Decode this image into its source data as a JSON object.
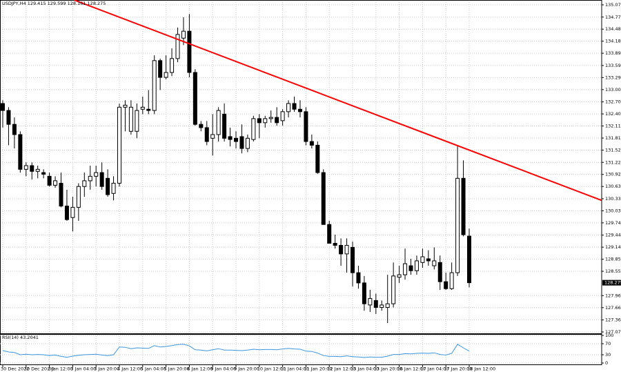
{
  "chart_data": {
    "type": "candlestick",
    "title": "USDJPY,H4  129.415 129.599 128.161 128.275",
    "categories": [
      "30 Dec 2022",
      null,
      null,
      null,
      "30 Dec 20:00",
      null,
      null,
      null,
      "2 Jan 12:00",
      null,
      null,
      null,
      "3 Jan 04:00",
      null,
      null,
      null,
      "3 Jan 20:00",
      null,
      null,
      null,
      "4 Jan 12:00",
      null,
      null,
      null,
      "5 Jan 04:00",
      null,
      null,
      null,
      "5 Jan 20:00",
      null,
      null,
      null,
      "6 Jan 12:00",
      null,
      null,
      null,
      "9 Jan 04:00",
      null,
      null,
      null,
      "9 Jan 20:00",
      null,
      null,
      null,
      "10 Jan 12:00",
      null,
      null,
      null,
      "11 Jan 04:00",
      null,
      null,
      null,
      "11 Jan 20:00",
      null,
      null,
      null,
      "12 Jan 12:00",
      null,
      null,
      null,
      "13 Jan 04:00",
      null,
      null,
      null,
      "13 Jan 20:00",
      null,
      null,
      null,
      "16 Jan 12:00",
      null,
      null,
      null,
      "17 Jan 04:00",
      null,
      null,
      null,
      "17 Jan 20:00",
      null,
      null,
      null,
      "18 Jan 12:00"
    ],
    "open": [
      132.66,
      132.49,
      132.15,
      131.9,
      131.05,
      131.14,
      131.0,
      130.97,
      130.88,
      130.66,
      130.71,
      130.15,
      129.87,
      130.12,
      130.63,
      130.77,
      130.88,
      130.97,
      130.83,
      130.46,
      130.71,
      132.57,
      131.98,
      131.98,
      132.52,
      132.52,
      132.49,
      133.71,
      133.3,
      133.42,
      133.76,
      134.26,
      134.43,
      133.42,
      132.15,
      132.07,
      131.81,
      131.9,
      132.4,
      131.85,
      131.81,
      131.85,
      131.56,
      131.78,
      132.29,
      132.19,
      132.29,
      132.32,
      132.24,
      132.46,
      132.66,
      132.52,
      132.46,
      131.73,
      131.64,
      130.97,
      129.7,
      129.24,
      129.19,
      128.98,
      129.14,
      128.52,
      128.27,
      127.73,
      127.84,
      127.67,
      127.67,
      127.76,
      128.41,
      128.47,
      128.69,
      128.57,
      128.77,
      128.86,
      128.69,
      128.77,
      128.3,
      128.13,
      128.52,
      130.83,
      129.415
    ],
    "high": [
      132.74,
      132.57,
      132.32,
      131.98,
      131.22,
      131.22,
      131.14,
      131.05,
      130.97,
      130.88,
      130.97,
      130.55,
      130.38,
      130.71,
      130.97,
      131.14,
      131.14,
      131.22,
      131.05,
      130.88,
      132.66,
      132.74,
      132.74,
      132.66,
      132.83,
      132.99,
      133.84,
      133.76,
      133.84,
      134.01,
      134.52,
      134.77,
      134.85,
      133.5,
      132.23,
      132.23,
      132.4,
      132.57,
      132.66,
      132.07,
      131.98,
      132.15,
      131.9,
      132.36,
      132.4,
      132.36,
      132.49,
      132.57,
      132.52,
      132.74,
      132.83,
      132.74,
      132.57,
      131.9,
      131.73,
      131.05,
      129.79,
      129.45,
      129.36,
      129.36,
      129.28,
      128.69,
      128.44,
      128.1,
      128.01,
      127.84,
      128.47,
      128.77,
      128.69,
      129.11,
      128.86,
      128.94,
      129.11,
      129.07,
      129.14,
      128.94,
      128.52,
      128.77,
      131.61,
      131.27,
      129.599
    ],
    "low": [
      132.07,
      131.64,
      131.56,
      130.97,
      130.88,
      130.8,
      130.83,
      130.83,
      130.63,
      130.6,
      130.12,
      129.79,
      129.53,
      129.79,
      130.38,
      130.55,
      130.63,
      130.55,
      130.38,
      130.29,
      130.63,
      131.98,
      131.9,
      131.81,
      132.4,
      132.4,
      132.4,
      132.99,
      133.25,
      133.33,
      133.67,
      134.09,
      133.3,
      132.12,
      131.98,
      131.64,
      131.39,
      131.73,
      131.73,
      131.61,
      131.56,
      131.44,
      131.47,
      131.73,
      131.81,
      132.07,
      132.19,
      132.12,
      132.12,
      132.32,
      132.46,
      132.32,
      131.64,
      131.56,
      130.94,
      129.7,
      129.24,
      129.11,
      128.69,
      128.52,
      128.18,
      128.13,
      127.59,
      127.56,
      127.51,
      127.59,
      127.29,
      127.67,
      128.27,
      128.35,
      128.47,
      128.47,
      128.64,
      128.69,
      128.6,
      128.1,
      128.1,
      128.1,
      128.44,
      129.41,
      128.161
    ],
    "close": [
      132.49,
      132.15,
      131.9,
      131.05,
      131.14,
      131.0,
      131.05,
      130.93,
      130.66,
      130.77,
      130.15,
      129.82,
      130.12,
      130.63,
      130.77,
      130.88,
      130.97,
      130.63,
      130.43,
      130.71,
      132.57,
      132.62,
      132.57,
      132.49,
      132.57,
      132.49,
      133.71,
      133.3,
      133.42,
      133.76,
      134.35,
      134.43,
      133.42,
      132.15,
      132.07,
      131.73,
      131.9,
      132.49,
      131.81,
      131.78,
      131.73,
      131.56,
      131.81,
      132.29,
      132.19,
      132.29,
      132.32,
      132.19,
      132.46,
      132.66,
      132.52,
      132.46,
      131.73,
      131.64,
      130.97,
      129.7,
      129.24,
      129.19,
      128.98,
      129.19,
      128.52,
      128.27,
      127.76,
      127.89,
      127.67,
      127.73,
      127.76,
      128.44,
      128.47,
      128.74,
      128.57,
      128.81,
      128.91,
      128.81,
      128.81,
      128.3,
      128.13,
      128.52,
      130.83,
      129.45,
      128.275
    ],
    "up_color": "#ffffff",
    "down_color": "#000000",
    "ylim": [
      127.036,
      135.193
    ],
    "yticks": [
      135.075,
      134.775,
      {
        "value": 134.48,
        "label": "134.480"
      },
      134.185,
      {
        "value": 133.89,
        "label": "133.890"
      },
      {
        "value": 133.59,
        "label": "133.590"
      },
      133.295,
      {
        "value": 133,
        "label": "133.000"
      },
      {
        "value": 132.7,
        "label": "132.700"
      },
      132.405,
      {
        "value": 132.11,
        "label": "132.110"
      },
      131.815,
      {
        "value": 131.52,
        "label": "131.520"
      },
      {
        "value": 131.22,
        "label": "131.220"
      },
      130.925,
      {
        "value": 130.63,
        "label": "130.630"
      },
      {
        "value": 130.33,
        "label": "130.330"
      },
      130.035,
      {
        "value": 129.74,
        "label": "129.740"
      },
      {
        "value": 129.44,
        "label": "129.440"
      },
      129.145,
      {
        "value": 128.85,
        "label": "128.850"
      },
      128.555,
      {
        "value": 127.96,
        "label": "127.960"
      },
      127.665,
      127.365,
      {
        "value": 127.07,
        "label": "127.070"
      }
    ],
    "grid": true,
    "last_price": 128.275,
    "trendline": {
      "x": [
        12.3,
        102.7
      ],
      "values": [
        135.19,
        130.29
      ],
      "color": "#ff0000"
    },
    "rsi": {
      "title": "RSI(14) 43.2041",
      "color": "#3b95df",
      "values": [
        45,
        40,
        38,
        30,
        32,
        30,
        31,
        30,
        27,
        29,
        24,
        21,
        25,
        28,
        30,
        31,
        32,
        29,
        27,
        30,
        58,
        57,
        52,
        55,
        54,
        53,
        63,
        58,
        60,
        63,
        67,
        68,
        62,
        48,
        47,
        44,
        48,
        52,
        47,
        47,
        46,
        45,
        47,
        50,
        48,
        49,
        49,
        48,
        51,
        53,
        51,
        50,
        43,
        42,
        36,
        27,
        24,
        24,
        23,
        26,
        23,
        22,
        20,
        22,
        21,
        21,
        25,
        31,
        31,
        34,
        33,
        35,
        36,
        35,
        37,
        31,
        29,
        35,
        68,
        55,
        43.2041
      ],
      "ylim": [
        -5,
        105
      ],
      "yticks": [
        100,
        70,
        30,
        0
      ]
    }
  }
}
